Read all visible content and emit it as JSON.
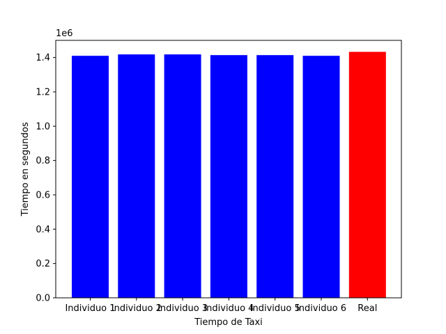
{
  "chart_data": {
    "type": "bar",
    "title": "",
    "xlabel": "Tiempo de Taxi",
    "ylabel": "Tiempo en segundos",
    "y_offset_label": "1e6",
    "categories": [
      "Individuo 1",
      "Individuo 2",
      "Individuo 3",
      "Individuo 4",
      "Individuo 5",
      "Individuo 6",
      "Real"
    ],
    "values": [
      1410000,
      1418000,
      1418000,
      1414000,
      1414000,
      1410000,
      1433000
    ],
    "bar_colors": [
      "#0000ff",
      "#0000ff",
      "#0000ff",
      "#0000ff",
      "#0000ff",
      "#0000ff",
      "#ff0000"
    ],
    "ylim": [
      0,
      1500000
    ],
    "y_ticks": [
      0,
      200000,
      400000,
      600000,
      800000,
      1000000,
      1200000,
      1400000
    ],
    "y_tick_labels": [
      "0.0",
      "0.2",
      "0.4",
      "0.6",
      "0.8",
      "1.0",
      "1.2",
      "1.4"
    ],
    "grid": false,
    "legend": "none"
  }
}
